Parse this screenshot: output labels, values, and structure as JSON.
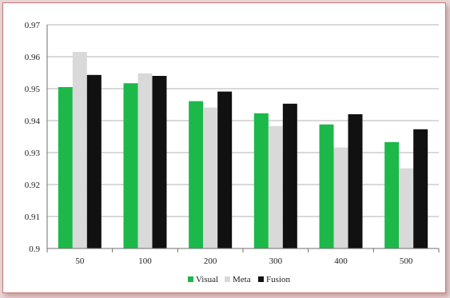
{
  "chart_data": {
    "type": "bar",
    "categories": [
      "50",
      "100",
      "200",
      "300",
      "400",
      "500"
    ],
    "series": [
      {
        "name": "Visual",
        "color": "#1db84a",
        "values": [
          0.9505,
          0.9517,
          0.9461,
          0.9423,
          0.9388,
          0.9333
        ]
      },
      {
        "name": "Meta",
        "color": "#d9d9d9",
        "values": [
          0.9615,
          0.9548,
          0.9441,
          0.9383,
          0.9316,
          0.9251
        ]
      },
      {
        "name": "Fusion",
        "color": "#111111",
        "values": [
          0.9543,
          0.954,
          0.9491,
          0.9453,
          0.942,
          0.9373
        ]
      }
    ],
    "yticks": [
      "0.9",
      "0.91",
      "0.92",
      "0.93",
      "0.94",
      "0.95",
      "0.96",
      "0.97"
    ],
    "ylim": [
      0.9,
      0.97
    ],
    "title": "",
    "xlabel": "",
    "ylabel": "",
    "grid": true,
    "legend_position": "bottom"
  }
}
